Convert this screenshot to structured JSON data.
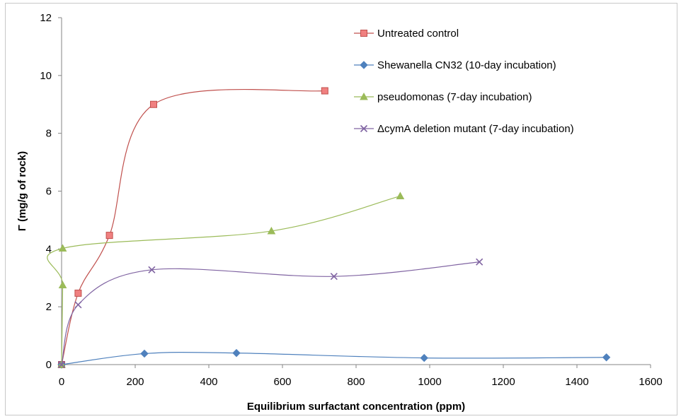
{
  "chart_data": {
    "type": "scatter",
    "title": "",
    "xlabel": "Equilibrium surfactant concentration (ppm)",
    "ylabel": "Γ (mg/g of rock)",
    "xlim": [
      0,
      1600
    ],
    "ylim": [
      0,
      12
    ],
    "xticks": [
      0,
      200,
      400,
      600,
      800,
      1000,
      1200,
      1400,
      1600
    ],
    "yticks": [
      0,
      2,
      4,
      6,
      8,
      10,
      12
    ],
    "grid": false,
    "legend_position": "top-right",
    "smooth_lines": true,
    "series": [
      {
        "name": "Untreated control",
        "color": "#c0504d",
        "marker": "square",
        "points": [
          [
            0,
            0
          ],
          [
            45,
            2.47
          ],
          [
            130,
            4.47
          ],
          [
            250,
            9.0
          ],
          [
            715,
            9.47
          ]
        ]
      },
      {
        "name": "Shewanella CN32 (10-day incubation)",
        "color": "#4f81bd",
        "marker": "diamond",
        "points": [
          [
            0,
            0
          ],
          [
            225,
            0.38
          ],
          [
            475,
            0.4
          ],
          [
            985,
            0.23
          ],
          [
            1480,
            0.25
          ]
        ]
      },
      {
        "name": "pseudomonas (7-day incubation)",
        "color": "#9bbb59",
        "marker": "triangle",
        "points": [
          [
            0,
            0
          ],
          [
            3,
            2.75
          ],
          [
            3,
            4.02
          ],
          [
            570,
            4.62
          ],
          [
            920,
            5.83
          ]
        ]
      },
      {
        "name": "ΔcymA deletion mutant (7-day incubation)",
        "color": "#8064a2",
        "marker": "x",
        "points": [
          [
            0,
            0
          ],
          [
            45,
            2.07
          ],
          [
            245,
            3.28
          ],
          [
            740,
            3.05
          ],
          [
            1135,
            3.55
          ]
        ]
      }
    ]
  }
}
